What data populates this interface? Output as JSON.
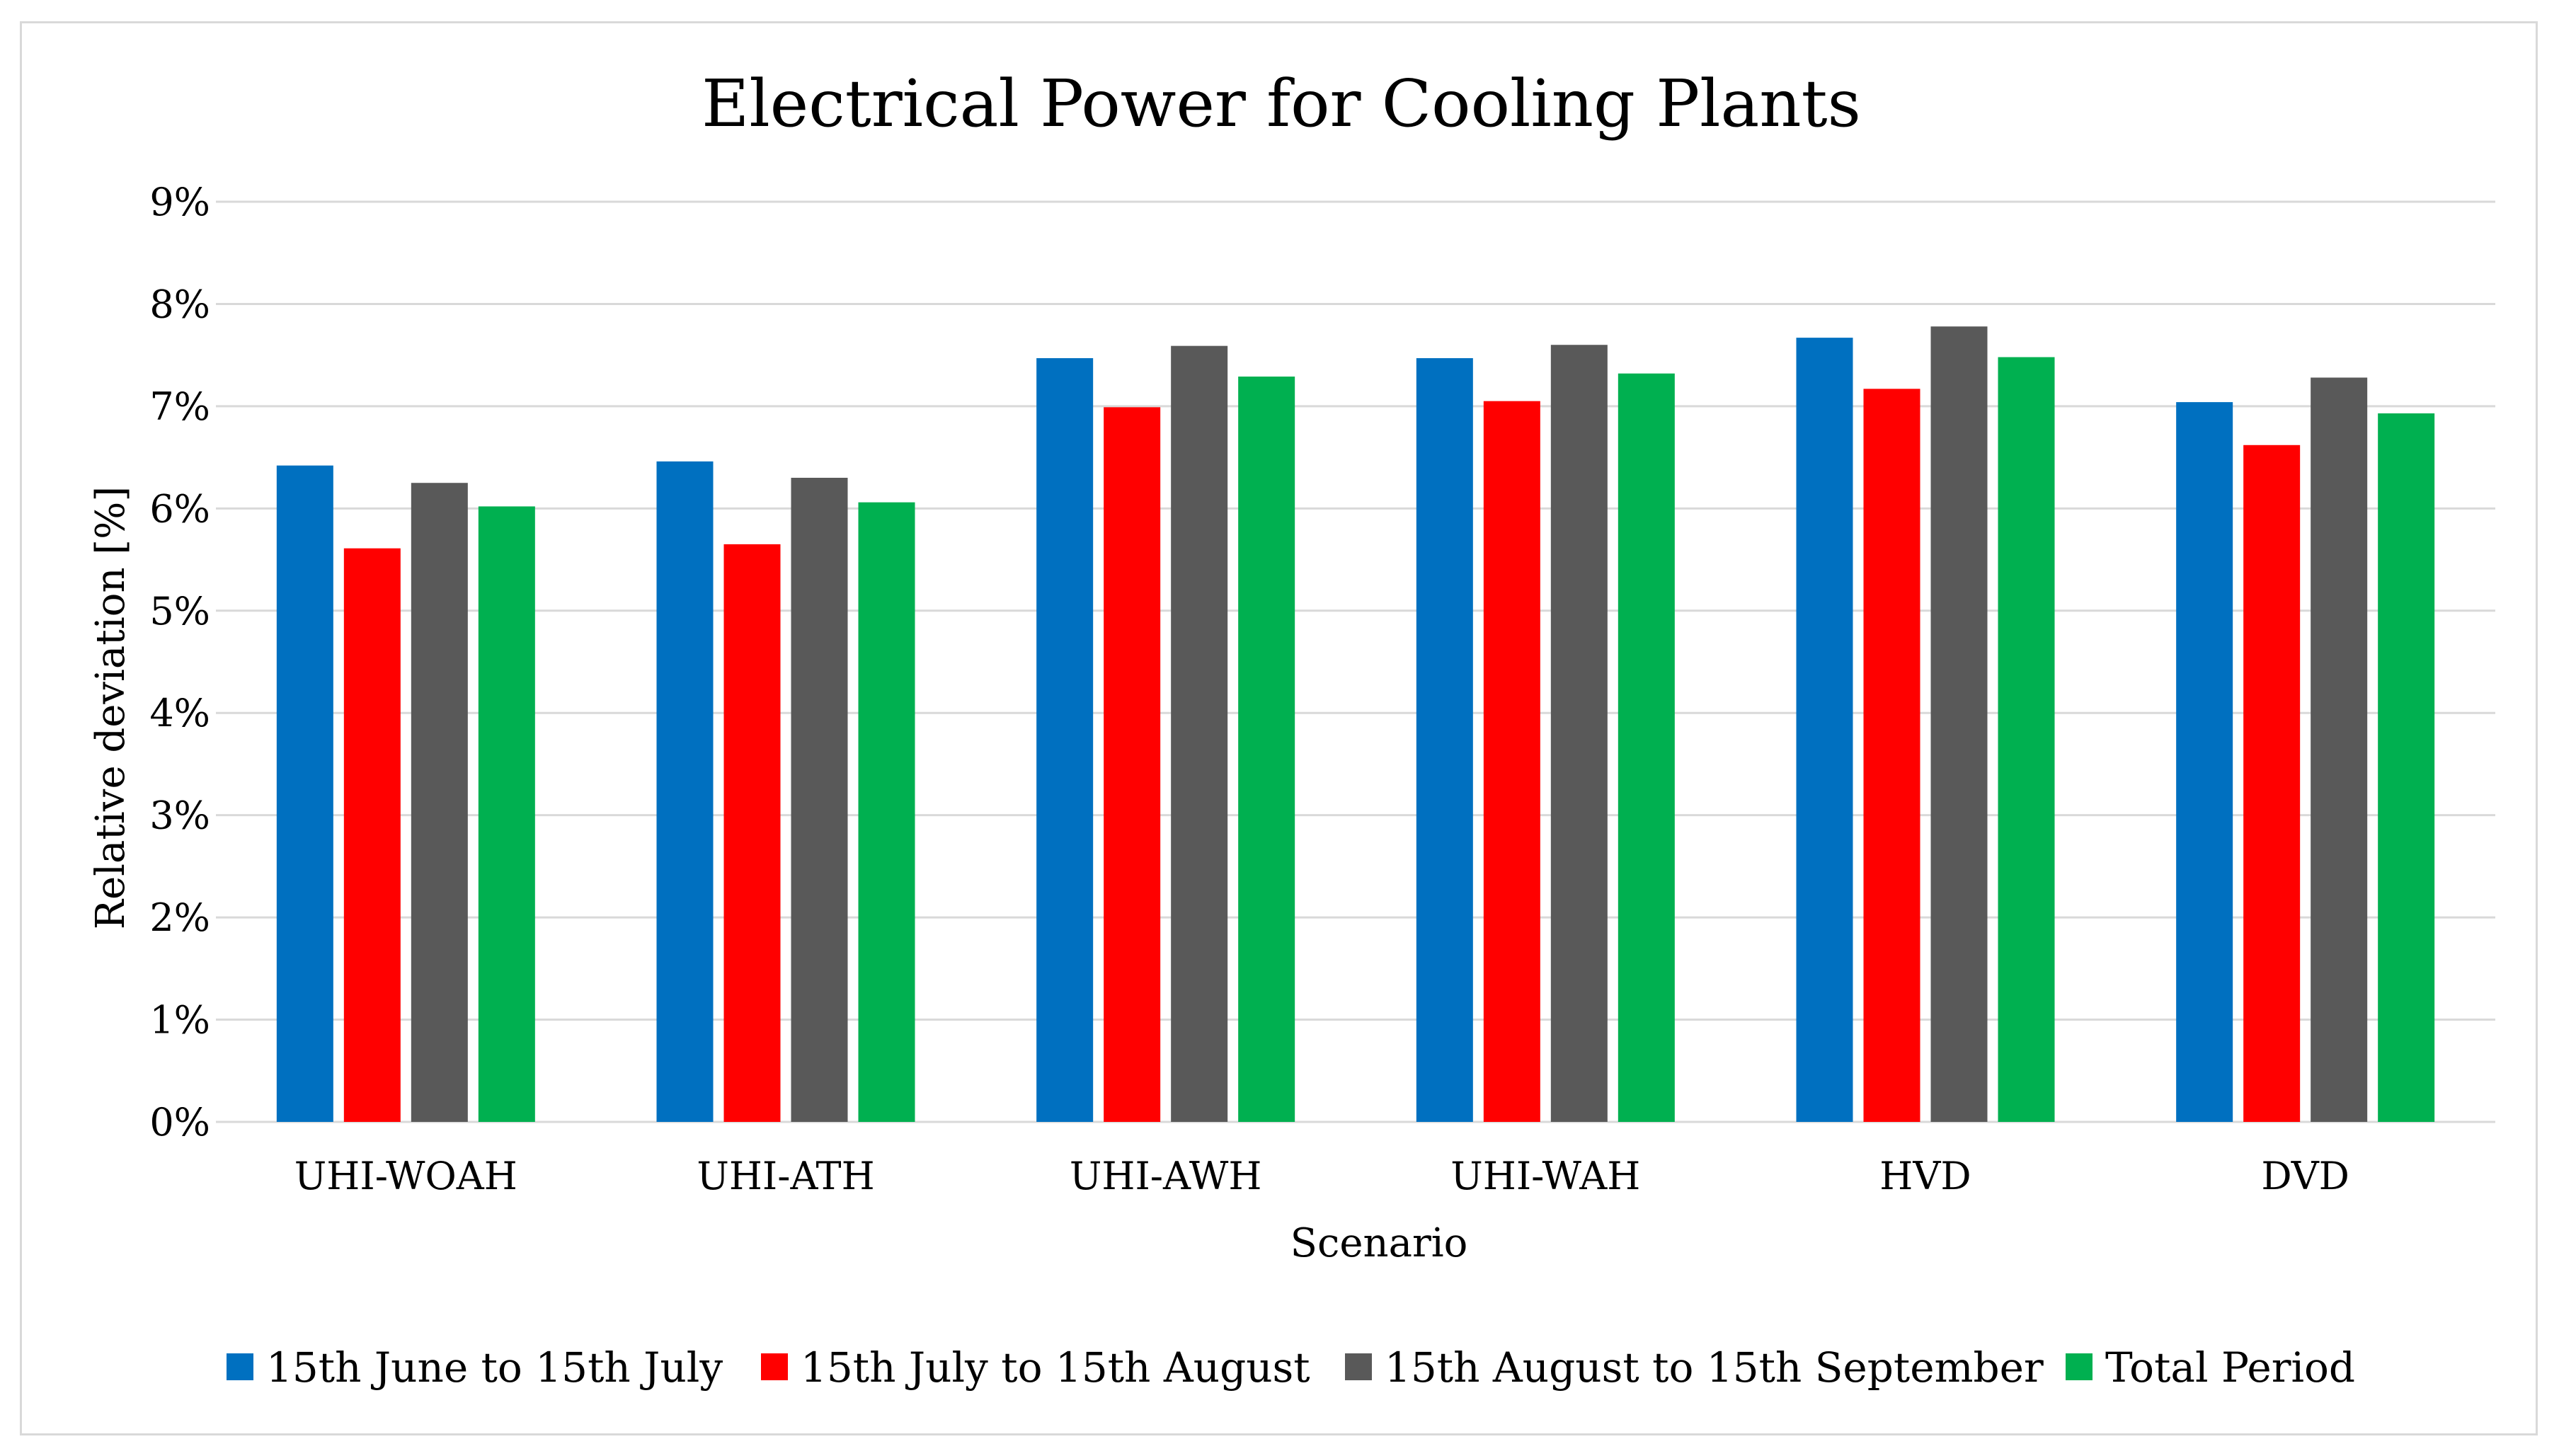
{
  "chart_data": {
    "type": "bar",
    "title": "Electrical Power for Cooling Plants",
    "xlabel": "Scenario",
    "ylabel": "Relative deviation [%]",
    "ylim": [
      0,
      9
    ],
    "yticks": [
      0,
      1,
      2,
      3,
      4,
      5,
      6,
      7,
      8,
      9
    ],
    "ytick_labels": [
      "0%",
      "1%",
      "2%",
      "3%",
      "4%",
      "5%",
      "6%",
      "7%",
      "8%",
      "9%"
    ],
    "grid": true,
    "legend_position": "bottom",
    "categories": [
      "UHI-WOAH",
      "UHI-ATH",
      "UHI-AWH",
      "UHI-WAH",
      "HVD",
      "DVD"
    ],
    "series": [
      {
        "name": "15th June to 15th July",
        "color": "#0070c0",
        "values": [
          6.42,
          6.46,
          7.47,
          7.47,
          7.67,
          7.04
        ]
      },
      {
        "name": "15th July to 15th August",
        "color": "#ff0000",
        "values": [
          5.61,
          5.65,
          6.99,
          7.05,
          7.17,
          6.62
        ]
      },
      {
        "name": "15th August to 15th September",
        "color": "#595959",
        "values": [
          6.25,
          6.3,
          7.59,
          7.6,
          7.78,
          7.28
        ]
      },
      {
        "name": "Total Period",
        "color": "#00b050",
        "values": [
          6.02,
          6.06,
          7.29,
          7.32,
          7.48,
          6.93
        ]
      }
    ]
  }
}
